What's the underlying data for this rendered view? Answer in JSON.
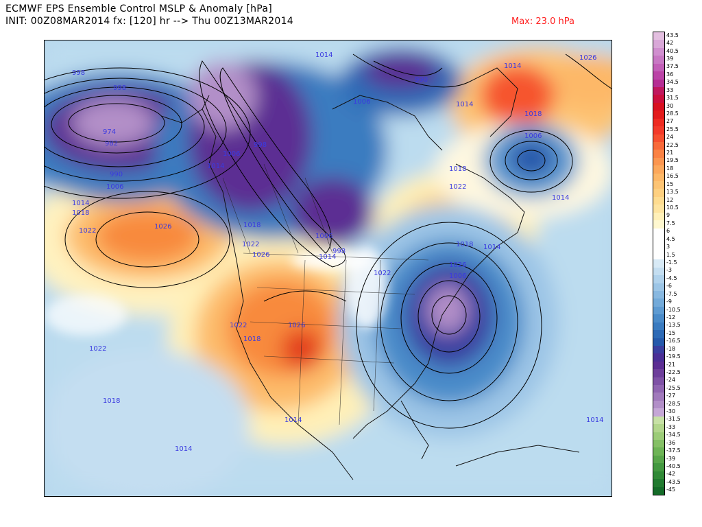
{
  "header": {
    "line1": "ECMWF EPS Ensemble Control MSLP & Anomaly [hPa]",
    "line2": "INIT: 00Z08MAR2014 fx: [120] hr --> Thu 00Z13MAR2014",
    "max_label": "Max: 23.0 hPa"
  },
  "isobar_labels": [
    {
      "text": "998"
    },
    {
      "text": "1014"
    },
    {
      "text": "998"
    },
    {
      "text": "990"
    },
    {
      "text": "974"
    },
    {
      "text": "982"
    },
    {
      "text": "990"
    },
    {
      "text": "1006"
    },
    {
      "text": "1014"
    },
    {
      "text": "1018"
    },
    {
      "text": "1022"
    },
    {
      "text": "1026"
    },
    {
      "text": "1006"
    },
    {
      "text": "998"
    },
    {
      "text": "1014"
    },
    {
      "text": "1018"
    },
    {
      "text": "1022"
    },
    {
      "text": "1026"
    },
    {
      "text": "1006"
    },
    {
      "text": "998"
    },
    {
      "text": "1014"
    },
    {
      "text": "1026"
    },
    {
      "text": "1018"
    },
    {
      "text": "1006"
    },
    {
      "text": "1014"
    },
    {
      "text": "1018"
    },
    {
      "text": "1022"
    },
    {
      "text": "1018"
    },
    {
      "text": "1014"
    },
    {
      "text": "1026"
    },
    {
      "text": "1006"
    },
    {
      "text": "1022"
    },
    {
      "text": "1022"
    },
    {
      "text": "1026"
    },
    {
      "text": "1018"
    },
    {
      "text": "1022"
    },
    {
      "text": "1018"
    },
    {
      "text": "1014"
    },
    {
      "text": "1014"
    },
    {
      "text": "1014"
    },
    {
      "text": "998"
    },
    {
      "text": "1006"
    },
    {
      "text": "1014"
    },
    {
      "text": "1014"
    }
  ],
  "colorbar": {
    "labels": [
      "43.5",
      "42",
      "40.5",
      "39",
      "37.5",
      "36",
      "34.5",
      "33",
      "31.5",
      "30",
      "28.5",
      "27",
      "25.5",
      "24",
      "22.5",
      "21",
      "19.5",
      "18",
      "16.5",
      "15",
      "13.5",
      "12",
      "10.5",
      "9",
      "7.5",
      "6",
      "4.5",
      "3",
      "1.5",
      "-1.5",
      "-3",
      "-4.5",
      "-6",
      "-7.5",
      "-9",
      "-10.5",
      "-12",
      "-13.5",
      "-15",
      "-16.5",
      "-18",
      "-19.5",
      "-21",
      "-22.5",
      "-24",
      "-25.5",
      "-27",
      "-28.5",
      "-30",
      "-31.5",
      "-33",
      "-34.5",
      "-36",
      "-37.5",
      "-39",
      "-40.5",
      "-42",
      "-43.5",
      "-45"
    ],
    "colors": [
      "#e3bfe0",
      "#d9a8d8",
      "#d08fcf",
      "#c878c4",
      "#c25fb8",
      "#bb44a7",
      "#b52e94",
      "#c0185e",
      "#cc0f3e",
      "#d81020",
      "#e31c1c",
      "#ee2b22",
      "#f33a2a",
      "#f65030",
      "#f86a3a",
      "#fa8244",
      "#fb9650",
      "#fca85c",
      "#fdb868",
      "#fdc474",
      "#fed080",
      "#fedc90",
      "#fee4a0",
      "#fff0b8",
      "#fff8d0",
      "#ffffff",
      "#ffffff",
      "#ffffff",
      "#ffffff",
      "#d8eaf6",
      "#c4def1",
      "#b0d2ec",
      "#9cc5e6",
      "#88b8e0",
      "#73aad9",
      "#5e9bd2",
      "#4a8bc9",
      "#3a7bc0",
      "#2d6ab6",
      "#2559ab",
      "#3a3fa0",
      "#4b2f96",
      "#5c2e93",
      "#6e3f9b",
      "#7f52a6",
      "#9065b1",
      "#a17abc",
      "#b28fc8",
      "#c5a7d6",
      "#c7e1a5",
      "#b2d68c",
      "#9ccc78",
      "#85c066",
      "#6eb456",
      "#58a64a",
      "#439840",
      "#318a37",
      "#227b30",
      "#156c29"
    ]
  }
}
